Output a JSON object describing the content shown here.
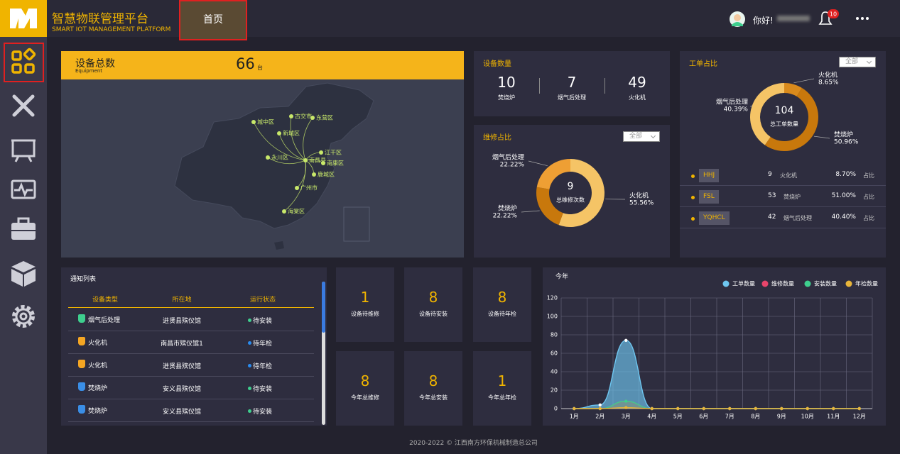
{
  "header": {
    "title": "智慧物联管理平台",
    "subtitle": "SMART IOT MANAGEMENT PLATFORM",
    "tab": "首页",
    "greeting": "你好!",
    "notifications": "10"
  },
  "equipment": {
    "title": "设备总数",
    "subtitle": "Equipment",
    "count": "66",
    "unit": "台",
    "locations": [
      "城中区",
      "古交市",
      "东营区",
      "新城区",
      "江干区",
      "永川区",
      "南昌县",
      "南康区",
      "鹿城区",
      "广州市",
      "海棠区"
    ]
  },
  "device_count": {
    "title": "设备数量",
    "items": [
      {
        "value": "10",
        "label": "焚烧炉"
      },
      {
        "value": "7",
        "label": "烟气后处理"
      },
      {
        "value": "49",
        "label": "火化机"
      }
    ]
  },
  "repair": {
    "title": "维修占比",
    "filter": "全部",
    "total": "9",
    "total_label": "总维修次数",
    "segments": [
      {
        "name": "火化机",
        "value": 55.56,
        "value_label": "55.56%",
        "color": "#f5c466"
      },
      {
        "name": "焚烧炉",
        "value": 22.22,
        "value_label": "22.22%",
        "color": "#c8780c"
      },
      {
        "name": "烟气后处理",
        "value": 22.22,
        "value_label": "22.22%",
        "color": "#ee9f34"
      }
    ]
  },
  "work_order": {
    "title": "工单占比",
    "filter": "全部",
    "total": "104",
    "total_label": "总工单数量",
    "segments": [
      {
        "name": "火化机",
        "value": 8.65,
        "value_label": "8.65%",
        "color": "#d98a1c"
      },
      {
        "name": "焚烧炉",
        "value": 50.96,
        "value_label": "50.96%",
        "color": "#c8780c"
      },
      {
        "name": "烟气后处理",
        "value": 40.39,
        "value_label": "40.39%",
        "color": "#f5c466"
      }
    ],
    "rows": [
      {
        "code": "HHJ",
        "count": "9",
        "type": "火化机",
        "percent": "8.70%",
        "suffix": "占比"
      },
      {
        "code": "FSL",
        "count": "53",
        "type": "焚烧炉",
        "percent": "51.00%",
        "suffix": "占比"
      },
      {
        "code": "YQHCL",
        "count": "42",
        "type": "烟气后处理",
        "percent": "40.40%",
        "suffix": "占比"
      }
    ]
  },
  "notices": {
    "title": "通知列表",
    "columns": [
      "设备类型",
      "所在地",
      "运行状态"
    ],
    "rows": [
      {
        "type": "烟气后处理",
        "location": "进贤县殡仪馆",
        "status": "待安装",
        "status_color": "#3ecf8e",
        "icon_color": "#3ecf8e"
      },
      {
        "type": "火化机",
        "location": "南昌市殡仪馆1",
        "status": "待年检",
        "status_color": "#2a8cf0",
        "icon_color": "#f5a623"
      },
      {
        "type": "火化机",
        "location": "进贤县殡仪馆",
        "status": "待年检",
        "status_color": "#2a8cf0",
        "icon_color": "#f5a623"
      },
      {
        "type": "焚烧炉",
        "location": "安义县殡仪馆",
        "status": "待安装",
        "status_color": "#3ecf8e",
        "icon_color": "#3a8ee6"
      },
      {
        "type": "焚烧炉",
        "location": "安义县殡仪馆",
        "status": "待安装",
        "status_color": "#3ecf8e",
        "icon_color": "#3a8ee6"
      }
    ]
  },
  "stats": [
    {
      "value": "1",
      "label": "设备待维修"
    },
    {
      "value": "8",
      "label": "设备待安装"
    },
    {
      "value": "8",
      "label": "设备待年检"
    },
    {
      "value": "8",
      "label": "今年总维修"
    },
    {
      "value": "8",
      "label": "今年总安装"
    },
    {
      "value": "1",
      "label": "今年总年检"
    }
  ],
  "trend": {
    "type": "line",
    "title": "今年",
    "categories": [
      "1月",
      "2月",
      "3月",
      "4月",
      "5月",
      "6月",
      "7月",
      "8月",
      "9月",
      "10月",
      "11月",
      "12月"
    ],
    "ylim": [
      0,
      120
    ],
    "yticks": [
      0,
      20,
      40,
      60,
      80,
      100,
      120
    ],
    "grid": true,
    "series": [
      {
        "name": "工单数量",
        "color": "#6ec6f0",
        "values": [
          0,
          4,
          74,
          0,
          0,
          0,
          0,
          0,
          0,
          0,
          0,
          0
        ]
      },
      {
        "name": "维修数量",
        "color": "#e8456b",
        "values": [
          0,
          0,
          8,
          0,
          0,
          0,
          0,
          0,
          0,
          0,
          0,
          0
        ]
      },
      {
        "name": "安装数量",
        "color": "#3ecf8e",
        "values": [
          0,
          0,
          8,
          0,
          0,
          0,
          0,
          0,
          0,
          0,
          0,
          0
        ]
      },
      {
        "name": "年检数量",
        "color": "#e8b53a",
        "values": [
          0,
          0,
          1,
          0,
          0,
          0,
          0,
          0,
          0,
          0,
          0,
          0
        ]
      }
    ]
  },
  "footer": "2020-2022 © 江西南方环保机械制造总公司"
}
